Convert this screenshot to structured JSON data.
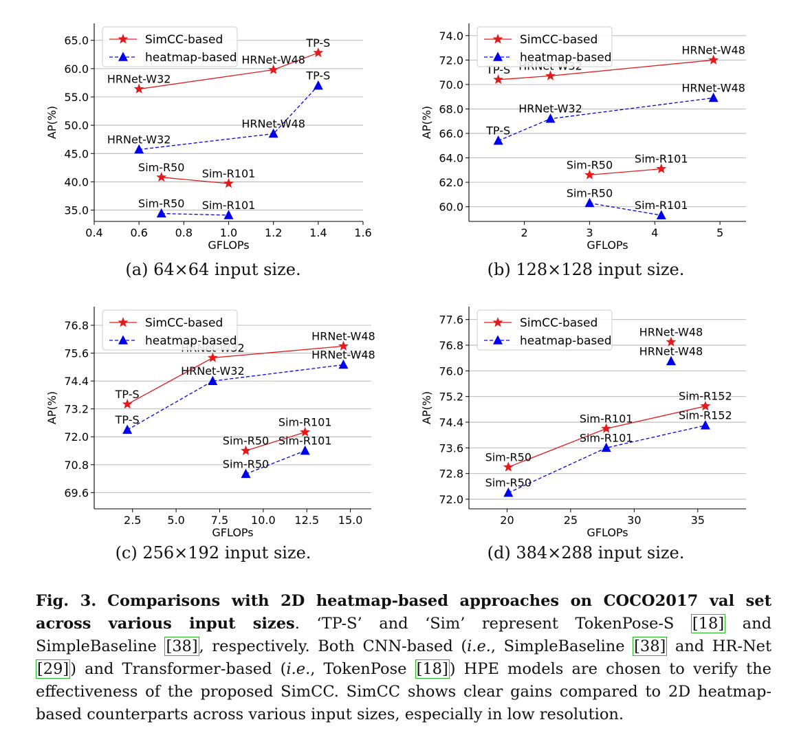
{
  "chart_data": [
    {
      "type": "line",
      "panel": "a",
      "subcaption": "(a) 64×64 input size.",
      "xlabel": "GFLOPs",
      "ylabel": "AP(%)",
      "xlim": [
        0.4,
        1.6
      ],
      "ylim": [
        33.0,
        68.0
      ],
      "xticks": [
        0.4,
        0.6,
        0.8,
        1.0,
        1.2,
        1.4,
        1.6
      ],
      "xtick_labels": [
        "0.4",
        "0.6",
        "0.8",
        "1.0",
        "1.2",
        "1.4",
        "1.6"
      ],
      "yticks": [
        35.0,
        40.0,
        45.0,
        50.0,
        55.0,
        60.0,
        65.0
      ],
      "ytick_labels": [
        "35.0",
        "40.0",
        "45.0",
        "50.0",
        "55.0",
        "60.0",
        "65.0"
      ],
      "grid": "horizontal",
      "legend_position": "top-left",
      "series": [
        {
          "name": "SimCC-based",
          "color": "#e31a1c",
          "marker": "star",
          "line": "solid",
          "groups": [
            {
              "points": [
                {
                  "x": 0.6,
                  "y": 56.4,
                  "label": "HRNet-W32"
                },
                {
                  "x": 1.2,
                  "y": 59.8,
                  "label": "HRNet-W48"
                },
                {
                  "x": 1.4,
                  "y": 62.8,
                  "label": "TP-S"
                }
              ]
            },
            {
              "points": [
                {
                  "x": 0.7,
                  "y": 40.8,
                  "label": "Sim-R50"
                },
                {
                  "x": 1.0,
                  "y": 39.7,
                  "label": "Sim-R101"
                }
              ]
            }
          ]
        },
        {
          "name": "heatmap-based",
          "color": "#0000ee",
          "marker": "triangle",
          "line": "dashed",
          "groups": [
            {
              "points": [
                {
                  "x": 0.6,
                  "y": 45.7,
                  "label": "HRNet-W32"
                },
                {
                  "x": 1.2,
                  "y": 48.5,
                  "label": "HRNet-W48"
                },
                {
                  "x": 1.4,
                  "y": 57.0,
                  "label": "TP-S"
                }
              ]
            },
            {
              "points": [
                {
                  "x": 0.7,
                  "y": 34.4,
                  "label": "Sim-R50"
                },
                {
                  "x": 1.0,
                  "y": 34.1,
                  "label": "Sim-R101"
                }
              ]
            }
          ]
        }
      ]
    },
    {
      "type": "line",
      "panel": "b",
      "subcaption": "(b) 128×128 input size.",
      "xlabel": "GFLOPs",
      "ylabel": "AP(%)",
      "xlim": [
        1.15,
        5.4
      ],
      "ylim": [
        58.8,
        75.0
      ],
      "xticks": [
        2,
        3,
        4,
        5
      ],
      "xtick_labels": [
        "2",
        "3",
        "4",
        "5"
      ],
      "yticks": [
        60.0,
        62.0,
        64.0,
        66.0,
        68.0,
        70.0,
        72.0,
        74.0
      ],
      "ytick_labels": [
        "60.0",
        "62.0",
        "64.0",
        "66.0",
        "68.0",
        "70.0",
        "72.0",
        "74.0"
      ],
      "grid": "horizontal",
      "legend_position": "top-left",
      "series": [
        {
          "name": "SimCC-based",
          "color": "#e31a1c",
          "marker": "star",
          "line": "solid",
          "groups": [
            {
              "points": [
                {
                  "x": 1.6,
                  "y": 70.4,
                  "label": "TP-S"
                },
                {
                  "x": 2.4,
                  "y": 70.7,
                  "label": "HRNet-W32"
                },
                {
                  "x": 4.9,
                  "y": 72.0,
                  "label": "HRNet-W48"
                }
              ]
            },
            {
              "points": [
                {
                  "x": 3.0,
                  "y": 62.6,
                  "label": "Sim-R50"
                },
                {
                  "x": 4.1,
                  "y": 63.1,
                  "label": "Sim-R101"
                }
              ]
            }
          ]
        },
        {
          "name": "heatmap-based",
          "color": "#0000ee",
          "marker": "triangle",
          "line": "dashed",
          "groups": [
            {
              "points": [
                {
                  "x": 1.6,
                  "y": 65.4,
                  "label": "TP-S"
                },
                {
                  "x": 2.4,
                  "y": 67.2,
                  "label": "HRNet-W32"
                },
                {
                  "x": 4.9,
                  "y": 68.9,
                  "label": "HRNet-W48"
                }
              ]
            },
            {
              "points": [
                {
                  "x": 3.0,
                  "y": 60.3,
                  "label": "Sim-R50"
                },
                {
                  "x": 4.1,
                  "y": 59.3,
                  "label": "Sim-R101"
                }
              ]
            }
          ]
        }
      ]
    },
    {
      "type": "line",
      "panel": "c",
      "subcaption": "(c) 256×192 input size.",
      "xlabel": "GFLOPs",
      "ylabel": "AP(%)",
      "xlim": [
        0.3,
        16.2
      ],
      "ylim": [
        68.9,
        77.6
      ],
      "xticks": [
        2.5,
        5.0,
        7.5,
        10.0,
        12.5,
        15.0
      ],
      "xtick_labels": [
        "2.5",
        "5.0",
        "7.5",
        "10.0",
        "12.5",
        "15.0"
      ],
      "yticks": [
        69.6,
        70.8,
        72.0,
        73.2,
        74.4,
        75.6,
        76.8
      ],
      "ytick_labels": [
        "69.6",
        "70.8",
        "72.0",
        "73.2",
        "74.4",
        "75.6",
        "76.8"
      ],
      "grid": "horizontal",
      "legend_position": "top-left",
      "series": [
        {
          "name": "SimCC-based",
          "color": "#e31a1c",
          "marker": "star",
          "line": "solid",
          "groups": [
            {
              "points": [
                {
                  "x": 2.2,
                  "y": 73.4,
                  "label": "TP-S"
                },
                {
                  "x": 7.1,
                  "y": 75.4,
                  "label": "HRNet-W32"
                },
                {
                  "x": 14.6,
                  "y": 75.9,
                  "label": "HRNet-W48"
                }
              ]
            },
            {
              "points": [
                {
                  "x": 9.0,
                  "y": 71.4,
                  "label": "Sim-R50"
                },
                {
                  "x": 12.4,
                  "y": 72.2,
                  "label": "Sim-R101"
                }
              ]
            }
          ]
        },
        {
          "name": "heatmap-based",
          "color": "#0000ee",
          "marker": "triangle",
          "line": "dashed",
          "groups": [
            {
              "points": [
                {
                  "x": 2.2,
                  "y": 72.3,
                  "label": "TP-S"
                },
                {
                  "x": 7.1,
                  "y": 74.4,
                  "label": "HRNet-W32"
                },
                {
                  "x": 14.6,
                  "y": 75.1,
                  "label": "HRNet-W48"
                }
              ]
            },
            {
              "points": [
                {
                  "x": 9.0,
                  "y": 70.4,
                  "label": "Sim-R50"
                },
                {
                  "x": 12.4,
                  "y": 71.4,
                  "label": "Sim-R101"
                }
              ]
            }
          ]
        }
      ]
    },
    {
      "type": "line",
      "panel": "d",
      "subcaption": "(d) 384×288 input size.",
      "xlabel": "GFLOPs",
      "ylabel": "AP(%)",
      "xlim": [
        17.0,
        38.8
      ],
      "ylim": [
        71.7,
        78.0
      ],
      "xticks": [
        20,
        25,
        30,
        35
      ],
      "xtick_labels": [
        "20",
        "25",
        "30",
        "35"
      ],
      "yticks": [
        72.0,
        72.8,
        73.6,
        74.4,
        75.2,
        76.0,
        76.8,
        77.6
      ],
      "ytick_labels": [
        "72.0",
        "72.8",
        "73.6",
        "74.4",
        "75.2",
        "76.0",
        "76.8",
        "77.6"
      ],
      "grid": "horizontal",
      "legend_position": "top-left",
      "series": [
        {
          "name": "SimCC-based",
          "color": "#e31a1c",
          "marker": "star",
          "line": "solid",
          "groups": [
            {
              "points": [
                {
                  "x": 20.1,
                  "y": 73.0,
                  "label": "Sim-R50"
                },
                {
                  "x": 27.8,
                  "y": 74.2,
                  "label": "Sim-R101"
                },
                {
                  "x": 35.6,
                  "y": 74.9,
                  "label": "Sim-R152"
                }
              ]
            },
            {
              "points": [
                {
                  "x": 32.9,
                  "y": 76.9,
                  "label": "HRNet-W48"
                }
              ]
            }
          ]
        },
        {
          "name": "heatmap-based",
          "color": "#0000ee",
          "marker": "triangle",
          "line": "dashed",
          "groups": [
            {
              "points": [
                {
                  "x": 20.1,
                  "y": 72.2,
                  "label": "Sim-R50"
                },
                {
                  "x": 27.8,
                  "y": 73.6,
                  "label": "Sim-R101"
                },
                {
                  "x": 35.6,
                  "y": 74.3,
                  "label": "Sim-R152"
                }
              ]
            },
            {
              "points": [
                {
                  "x": 32.9,
                  "y": 76.3,
                  "label": "HRNet-W48"
                }
              ]
            }
          ]
        }
      ]
    }
  ],
  "caption": {
    "figure_label": "Fig. 3.",
    "title": "Comparisons with 2D heatmap-based approaches on COCO2017 val set across various input sizes",
    "period": ".",
    "parts": [
      " ‘TP-S’ and ‘Sim’ represent TokenPose-S ",
      "[18]",
      " and SimpleBaseline ",
      "[38]",
      ", respectively. Both CNN-based (",
      "i.e.",
      ", SimpleBaseline ",
      "[38]",
      " and HR-Net ",
      "[29]",
      ") and Transformer-based (",
      "i.e.",
      ", TokenPose ",
      "[18]",
      ") HPE models are chosen to verify the effectiveness of the proposed SimCC. SimCC shows clear gains compared to 2D heatmap-based counterparts across various input sizes, especially in low resolution."
    ]
  }
}
